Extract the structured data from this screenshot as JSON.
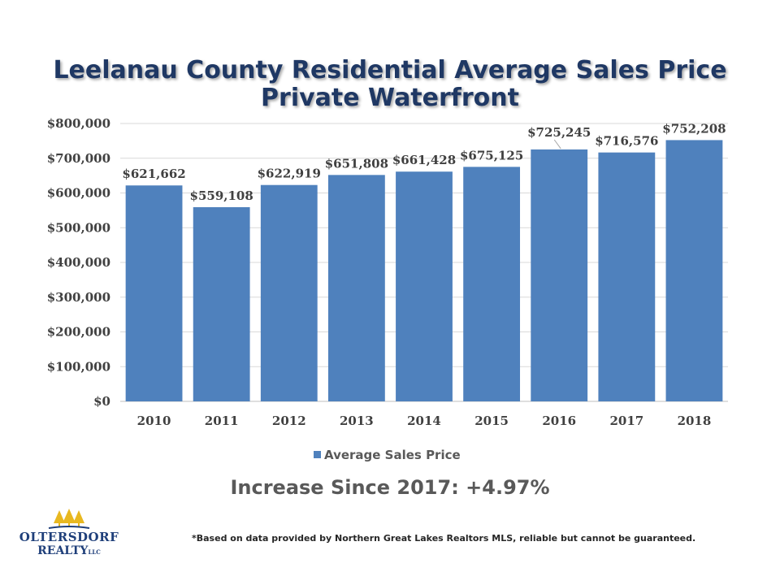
{
  "colors": {
    "bar": "#4f81bd",
    "title": "#1f3864",
    "grid": "#d9d9d9"
  },
  "logo": {
    "icon": "trees-icon",
    "line1": "OLTERSDORF",
    "line2": "REALTY",
    "llc": "LLC"
  },
  "summary": {
    "increase": "Increase Since 2017: +4.97%"
  },
  "footnote": "*Based on data provided by Northern Great Lakes Realtors MLS, reliable but cannot be guaranteed.",
  "chart_data": {
    "type": "bar",
    "title": "Leelanau County Residential Average Sales Price",
    "subtitle": "Private Waterfront",
    "categories": [
      "2010",
      "2011",
      "2012",
      "2013",
      "2014",
      "2015",
      "2016",
      "2017",
      "2018"
    ],
    "series": [
      {
        "name": "Average Sales Price",
        "values": [
          621662,
          559108,
          622919,
          651808,
          661428,
          675125,
          725245,
          716576,
          752208
        ]
      }
    ],
    "data_labels": [
      "$621,662",
      "$559,108",
      "$622,919",
      "$651,808",
      "$661,428",
      "$675,125",
      "$725,245",
      "$716,576",
      "$752,208"
    ],
    "y_ticks": [
      "$0",
      "$100,000",
      "$200,000",
      "$300,000",
      "$400,000",
      "$500,000",
      "$600,000",
      "$700,000",
      "$800,000"
    ],
    "ylim": [
      0,
      800000
    ],
    "grid": true,
    "legend": "bottom",
    "xlabel": "",
    "ylabel": ""
  }
}
